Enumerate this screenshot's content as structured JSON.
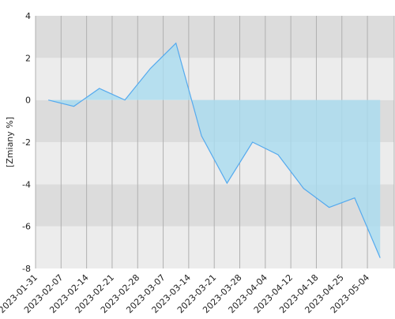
{
  "chart_data": {
    "type": "area",
    "y_label": "[Zmiany %]",
    "categories": [
      "2023-01-31",
      "2023-02-07",
      "2023-02-14",
      "2023-02-21",
      "2023-02-28",
      "2023-03-07",
      "2023-03-14",
      "2023-03-21",
      "2023-03-28",
      "2023-04-04",
      "2023-04-12",
      "2023-04-18",
      "2023-04-25",
      "2023-05-04"
    ],
    "values": [
      0,
      -0.3,
      0.55,
      0,
      1.5,
      2.7,
      -1.7,
      -3.95,
      -2,
      -2.6,
      -4.2,
      -5.1,
      -4.65,
      -7.5
    ],
    "color": "#55aaee",
    "fill": "#a9dcf0",
    "ylim": [
      -8,
      4
    ],
    "yticks": [
      -8,
      -6,
      -4,
      -2,
      0,
      2,
      4
    ],
    "grid": true
  }
}
